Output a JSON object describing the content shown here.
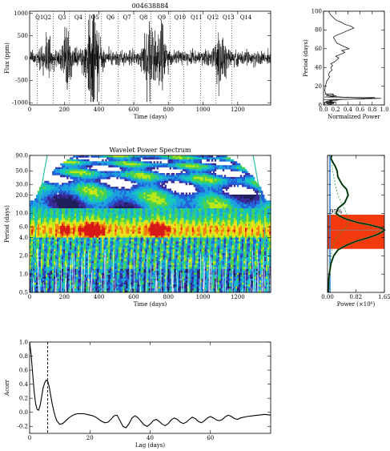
{
  "chart_data": [
    {
      "id": "lightcurve",
      "type": "line",
      "title": "004638884",
      "xlabel": "Time (days)",
      "ylabel": "Flux (ppm)",
      "xlim": [
        0,
        1390
      ],
      "ylim": [
        -1050,
        1050
      ],
      "xticks": [
        0,
        200,
        400,
        600,
        800,
        1000,
        1200
      ],
      "yticks": [
        -1000,
        -500,
        0,
        500,
        1000
      ],
      "quarters": {
        "labels": [
          "Q1",
          "Q2",
          "Q3",
          "Q4",
          "Q5",
          "Q6",
          "Q7",
          "Q8",
          "Q9",
          "Q10",
          "Q11",
          "Q12",
          "Q13",
          "Q14"
        ],
        "label_x": [
          10,
          55,
          140,
          235,
          330,
          420,
          515,
          610,
          715,
          810,
          905,
          1000,
          1090,
          1190
        ],
        "boundaries": [
          45,
          135,
          230,
          320,
          415,
          510,
          605,
          700,
          810,
          890,
          985,
          1075,
          1165
        ]
      }
    },
    {
      "id": "periodogram",
      "type": "line",
      "xlabel": "Normalized Power",
      "ylabel": "Period (days)",
      "xlim": [
        0,
        1.0
      ],
      "ylim": [
        0,
        100
      ],
      "xticks": [
        0.0,
        0.2,
        0.4,
        0.6,
        0.8,
        1.0
      ],
      "xticklabels": [
        "0.0",
        "0.2",
        "0.4",
        "0.6",
        "0.8",
        "1.0"
      ],
      "yticks": [
        0,
        20,
        40,
        60,
        80,
        100
      ],
      "series": [
        {
          "period": [
            0,
            2,
            4,
            6,
            7,
            8,
            9,
            10,
            12,
            15,
            20,
            25,
            28,
            30,
            32,
            35,
            37,
            40,
            42,
            44,
            46,
            48,
            50,
            52,
            54,
            56,
            58,
            60,
            62,
            64,
            66,
            68,
            70,
            72,
            74,
            76,
            78,
            80,
            82,
            84,
            86,
            88,
            90,
            92,
            94,
            96,
            98,
            100
          ],
          "power": [
            0.01,
            0.02,
            0.05,
            0.3,
            0.95,
            0.4,
            0.15,
            0.08,
            0.04,
            0.02,
            0.03,
            0.05,
            0.08,
            0.1,
            0.08,
            0.1,
            0.14,
            0.12,
            0.15,
            0.12,
            0.18,
            0.22,
            0.25,
            0.2,
            0.28,
            0.35,
            0.3,
            0.42,
            0.35,
            0.28,
            0.22,
            0.2,
            0.18,
            0.16,
            0.2,
            0.28,
            0.35,
            0.42,
            0.5,
            0.45,
            0.35,
            0.3,
            0.22,
            0.18,
            0.15,
            0.12,
            0.1,
            0.08
          ]
        }
      ]
    },
    {
      "id": "wavelet",
      "type": "heatmap",
      "title": "Wavelet Power Spectrum",
      "xlabel": "Time (days)",
      "ylabel": "Period (days)",
      "xlim": [
        0,
        1390
      ],
      "ylim": [
        0.5,
        90
      ],
      "yscale": "log",
      "xticks": [
        0,
        200,
        400,
        600,
        800,
        1000,
        1200
      ],
      "yticks": [
        0.5,
        1.0,
        2.0,
        4.0,
        6.0,
        10.0,
        20.0,
        30.0,
        50.0,
        90.0
      ],
      "yticklabels": [
        "0.5",
        "1.0",
        "2.0",
        "4.0",
        "6.0",
        "10.0",
        "20.0",
        "30.0",
        "50.0",
        "90.0"
      ],
      "colors": [
        "#ffffff",
        "#1e1e5a",
        "#3a2a9a",
        "#2460d8",
        "#1ca0e0",
        "#16c8b8",
        "#48d050",
        "#b8e818",
        "#f0e020",
        "#f08010",
        "#d81818"
      ]
    },
    {
      "id": "global_wavelet",
      "type": "line",
      "xlabel": "Power (×10⁶)",
      "ylabel": "",
      "xlim": [
        0,
        1.65
      ],
      "ylim": [
        0.5,
        90
      ],
      "yscale": "log",
      "xticks": [
        0.0,
        0.82,
        1.65
      ],
      "xticklabels": [
        "0.00",
        "0.82",
        "1.65"
      ],
      "yticks": [
        0.5,
        1.0,
        2.0,
        4.0,
        6.0,
        10.0,
        20.0,
        30.0,
        50.0,
        90.0
      ],
      "annotation": "95%",
      "highlight_band": [
        2.6,
        9.5
      ],
      "peak_period": 5.3,
      "series": [
        {
          "period": [
            0.5,
            0.8,
            1.0,
            1.5,
            2.0,
            2.5,
            3.0,
            3.5,
            4.0,
            4.5,
            5.0,
            5.3,
            5.6,
            6.0,
            6.5,
            7.0,
            8.0,
            9.0,
            10.0,
            12.0,
            15.0,
            20.0,
            25.0,
            30.0,
            40.0,
            50.0,
            60.0,
            70.0,
            80.0,
            90.0
          ],
          "power": [
            0.02,
            0.03,
            0.05,
            0.1,
            0.18,
            0.3,
            0.55,
            0.85,
            1.2,
            1.45,
            1.6,
            1.65,
            1.6,
            1.45,
            1.2,
            0.9,
            0.55,
            0.35,
            0.25,
            0.3,
            0.5,
            0.6,
            0.55,
            0.42,
            0.3,
            0.28,
            0.22,
            0.15,
            0.1,
            0.12
          ]
        },
        {
          "period": [
            0.5,
            1.0,
            2.0,
            3.0,
            4.0,
            5.0,
            6.0,
            8.0,
            10.0,
            15.0,
            20.0,
            30.0,
            50.0,
            90.0
          ],
          "power": [
            0.04,
            0.06,
            0.1,
            0.16,
            0.26,
            0.4,
            0.55,
            0.62,
            0.55,
            0.4,
            0.3,
            0.22,
            0.15,
            0.1
          ]
        }
      ]
    },
    {
      "id": "acf",
      "type": "line",
      "xlabel": "Lag (days)",
      "ylabel": "Acorr",
      "xlim": [
        0,
        80
      ],
      "ylim": [
        -0.3,
        1.0
      ],
      "xticks": [
        0,
        20,
        40,
        60
      ],
      "yticks": [
        -0.2,
        0.0,
        0.2,
        0.4,
        0.6,
        0.8,
        1.0
      ],
      "yticklabels": [
        "-0.2",
        "0.0",
        "0.2",
        "0.4",
        "0.6",
        "0.8",
        "1.0"
      ],
      "dashed_x": 6.0,
      "series": [
        {
          "lag": [
            0,
            0.5,
            1,
            1.5,
            2,
            2.5,
            3,
            3.5,
            4,
            4.5,
            5,
            5.5,
            6,
            6.5,
            7,
            7.5,
            8,
            8.5,
            9,
            10,
            11,
            12,
            13,
            14,
            15,
            16,
            17,
            18,
            19,
            20,
            21,
            22,
            23,
            24,
            25,
            26,
            27,
            28,
            29,
            30,
            31,
            32,
            33,
            34,
            35,
            36,
            37,
            38,
            39,
            40,
            41,
            42,
            43,
            44,
            45,
            46,
            47,
            48,
            49,
            50,
            51,
            52,
            53,
            54,
            55,
            56,
            57,
            58,
            59,
            60,
            61,
            62,
            63,
            64,
            65,
            66,
            67,
            68,
            69,
            70,
            72,
            74,
            76,
            78,
            80
          ],
          "acf": [
            1.0,
            0.82,
            0.55,
            0.3,
            0.12,
            0.04,
            0.03,
            0.1,
            0.22,
            0.35,
            0.42,
            0.46,
            0.44,
            0.36,
            0.24,
            0.12,
            0.02,
            -0.06,
            -0.12,
            -0.17,
            -0.16,
            -0.12,
            -0.08,
            -0.05,
            -0.03,
            -0.02,
            -0.02,
            -0.02,
            -0.03,
            -0.04,
            -0.05,
            -0.07,
            -0.1,
            -0.13,
            -0.15,
            -0.14,
            -0.1,
            -0.05,
            -0.04,
            -0.12,
            -0.2,
            -0.22,
            -0.16,
            -0.08,
            -0.05,
            -0.08,
            -0.13,
            -0.18,
            -0.2,
            -0.17,
            -0.12,
            -0.1,
            -0.13,
            -0.17,
            -0.19,
            -0.16,
            -0.11,
            -0.08,
            -0.1,
            -0.14,
            -0.16,
            -0.14,
            -0.1,
            -0.07,
            -0.09,
            -0.13,
            -0.15,
            -0.12,
            -0.08,
            -0.06,
            -0.08,
            -0.11,
            -0.12,
            -0.1,
            -0.06,
            -0.04,
            -0.06,
            -0.09,
            -0.1,
            -0.08,
            -0.06,
            -0.05,
            -0.04,
            -0.03,
            -0.04
          ]
        }
      ]
    }
  ]
}
